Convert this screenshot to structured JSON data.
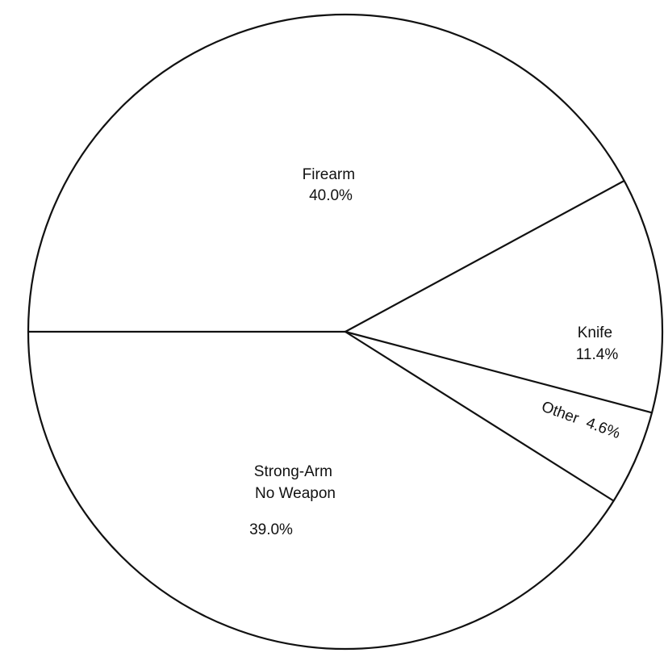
{
  "chart_data": {
    "type": "pie",
    "title": "",
    "slices": [
      {
        "label_lines": [
          "Firearm"
        ],
        "value_label": "40.0%",
        "value": 40.0
      },
      {
        "label_lines": [
          "Knife"
        ],
        "value_label": "11.4%",
        "value": 11.4
      },
      {
        "label_lines": [
          "Other"
        ],
        "value_label": "4.6%",
        "value": 4.6
      },
      {
        "label_lines": [
          "Strong-Arm",
          "No Weapon"
        ],
        "value_label": "39.0%",
        "value": 39.0
      }
    ],
    "legend": "none",
    "colors": {
      "fill": "#ffffff",
      "stroke": "#111111"
    }
  }
}
